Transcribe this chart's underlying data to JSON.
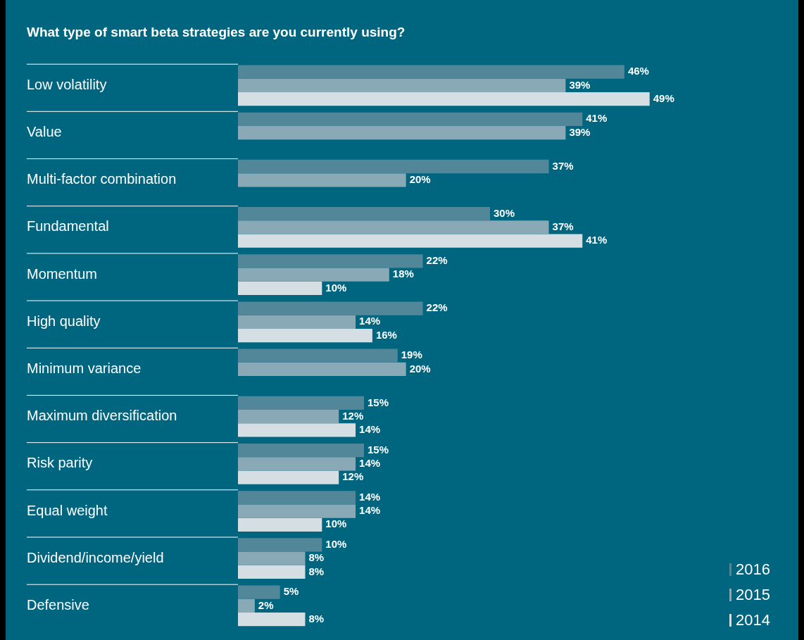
{
  "chart_data": {
    "type": "bar",
    "orientation": "horizontal",
    "title": "What type of smart beta strategies are you currently using?",
    "categories": [
      "Low volatility",
      "Value",
      "Multi-factor combination",
      "Fundamental",
      "Momentum",
      "High quality",
      "Minimum variance",
      "Maximum diversification",
      "Risk parity",
      "Equal weight",
      "Dividend/income/yield",
      "Defensive"
    ],
    "series": [
      {
        "name": "2016",
        "color": "#52879a",
        "values": [
          46,
          41,
          37,
          30,
          22,
          22,
          19,
          15,
          15,
          14,
          10,
          5
        ],
        "value_labels": [
          "46%",
          "41%",
          "37%",
          "30%",
          "22%",
          "22%",
          "19%",
          "15%",
          "15%",
          "14%",
          "10%",
          "5%"
        ]
      },
      {
        "name": "2015",
        "color": "#8aa9b6",
        "values": [
          39,
          39,
          20,
          37,
          18,
          14,
          20,
          12,
          14,
          14,
          8,
          2
        ],
        "value_labels": [
          "39%",
          "39%",
          "20%",
          "37%",
          "18%",
          "14%",
          "20%",
          "12%",
          "14%",
          "14%",
          "8%",
          "2%"
        ]
      },
      {
        "name": "2014",
        "color": "#d4dee3",
        "values": [
          49,
          null,
          null,
          41,
          10,
          16,
          null,
          14,
          12,
          10,
          8,
          8
        ],
        "value_labels": [
          "49%",
          null,
          null,
          "41%",
          "10%",
          "16%",
          null,
          "14%",
          "12%",
          "10%",
          "8%",
          "8%"
        ]
      }
    ],
    "legend": "bottom right",
    "grid": false
  }
}
